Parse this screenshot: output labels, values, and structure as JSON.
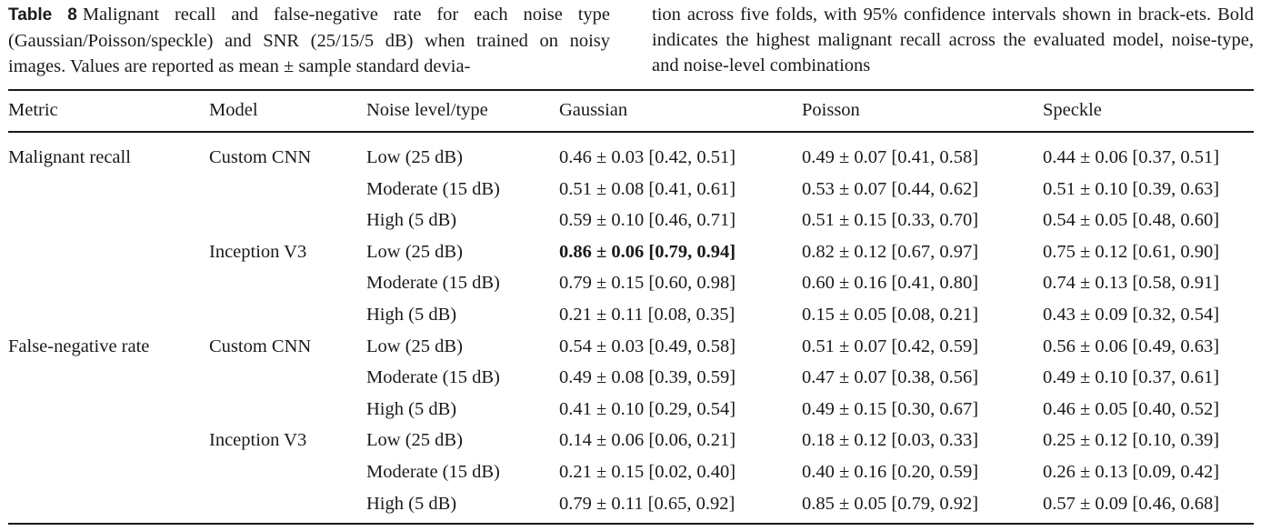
{
  "caption": {
    "label": "Table 8",
    "left_text": "Malignant recall and false-negative rate for each noise type (Gaussian/Poisson/speckle) and SNR (25/15/5 dB) when trained on noisy images. Values are reported as mean ± sample standard devia-",
    "right_text": "tion across five folds, with 95% confidence intervals shown in brack-ets. Bold indicates the highest malignant recall across the evaluated model, noise-type, and noise-level combinations"
  },
  "table": {
    "headers": [
      "Metric",
      "Model",
      "Noise level/type",
      "Gaussian",
      "Poisson",
      "Speckle"
    ],
    "rows": [
      [
        "Malignant recall",
        "Custom CNN",
        "Low (25 dB)",
        "0.46 ± 0.03 [0.42, 0.51]",
        "0.49 ± 0.07 [0.41, 0.58]",
        "0.44 ± 0.06 [0.37, 0.51]"
      ],
      [
        "",
        "",
        "Moderate (15 dB)",
        "0.51 ± 0.08 [0.41, 0.61]",
        "0.53 ± 0.07 [0.44, 0.62]",
        "0.51 ± 0.10 [0.39, 0.63]"
      ],
      [
        "",
        "",
        "High (5 dB)",
        "0.59 ± 0.10 [0.46, 0.71]",
        "0.51 ± 0.15 [0.33, 0.70]",
        "0.54 ± 0.05 [0.48, 0.60]"
      ],
      [
        "",
        "Inception V3",
        "Low (25 dB)",
        "0.86 ± 0.06 [0.79, 0.94]",
        "0.82 ± 0.12 [0.67, 0.97]",
        "0.75 ± 0.12 [0.61, 0.90]"
      ],
      [
        "",
        "",
        "Moderate (15 dB)",
        "0.79 ± 0.15 [0.60, 0.98]",
        "0.60 ± 0.16 [0.41, 0.80]",
        "0.74 ± 0.13 [0.58, 0.91]"
      ],
      [
        "",
        "",
        "High (5 dB)",
        "0.21 ± 0.11 [0.08, 0.35]",
        "0.15 ± 0.05 [0.08, 0.21]",
        "0.43 ± 0.09 [0.32, 0.54]"
      ],
      [
        "False-negative rate",
        "Custom CNN",
        "Low (25 dB)",
        "0.54 ± 0.03 [0.49, 0.58]",
        "0.51 ± 0.07 [0.42, 0.59]",
        "0.56 ± 0.06 [0.49, 0.63]"
      ],
      [
        "",
        "",
        "Moderate (15 dB)",
        "0.49 ± 0.08 [0.39, 0.59]",
        "0.47 ± 0.07 [0.38, 0.56]",
        "0.49 ± 0.10 [0.37, 0.61]"
      ],
      [
        "",
        "",
        "High (5 dB)",
        "0.41 ± 0.10 [0.29, 0.54]",
        "0.49 ± 0.15 [0.30, 0.67]",
        "0.46 ± 0.05 [0.40, 0.52]"
      ],
      [
        "",
        "Inception V3",
        "Low (25 dB)",
        "0.14 ± 0.06 [0.06, 0.21]",
        "0.18 ± 0.12 [0.03, 0.33]",
        "0.25 ± 0.12 [0.10, 0.39]"
      ],
      [
        "",
        "",
        "Moderate (15 dB)",
        "0.21 ± 0.15 [0.02, 0.40]",
        "0.40 ± 0.16 [0.20, 0.59]",
        "0.26 ± 0.13 [0.09, 0.42]"
      ],
      [
        "",
        "",
        "High (5 dB)",
        "0.79 ± 0.11 [0.65, 0.92]",
        "0.85 ± 0.05 [0.79, 0.92]",
        "0.57 ± 0.09 [0.46, 0.68]"
      ]
    ],
    "bold_cell": {
      "row": 3,
      "col": 3
    }
  }
}
